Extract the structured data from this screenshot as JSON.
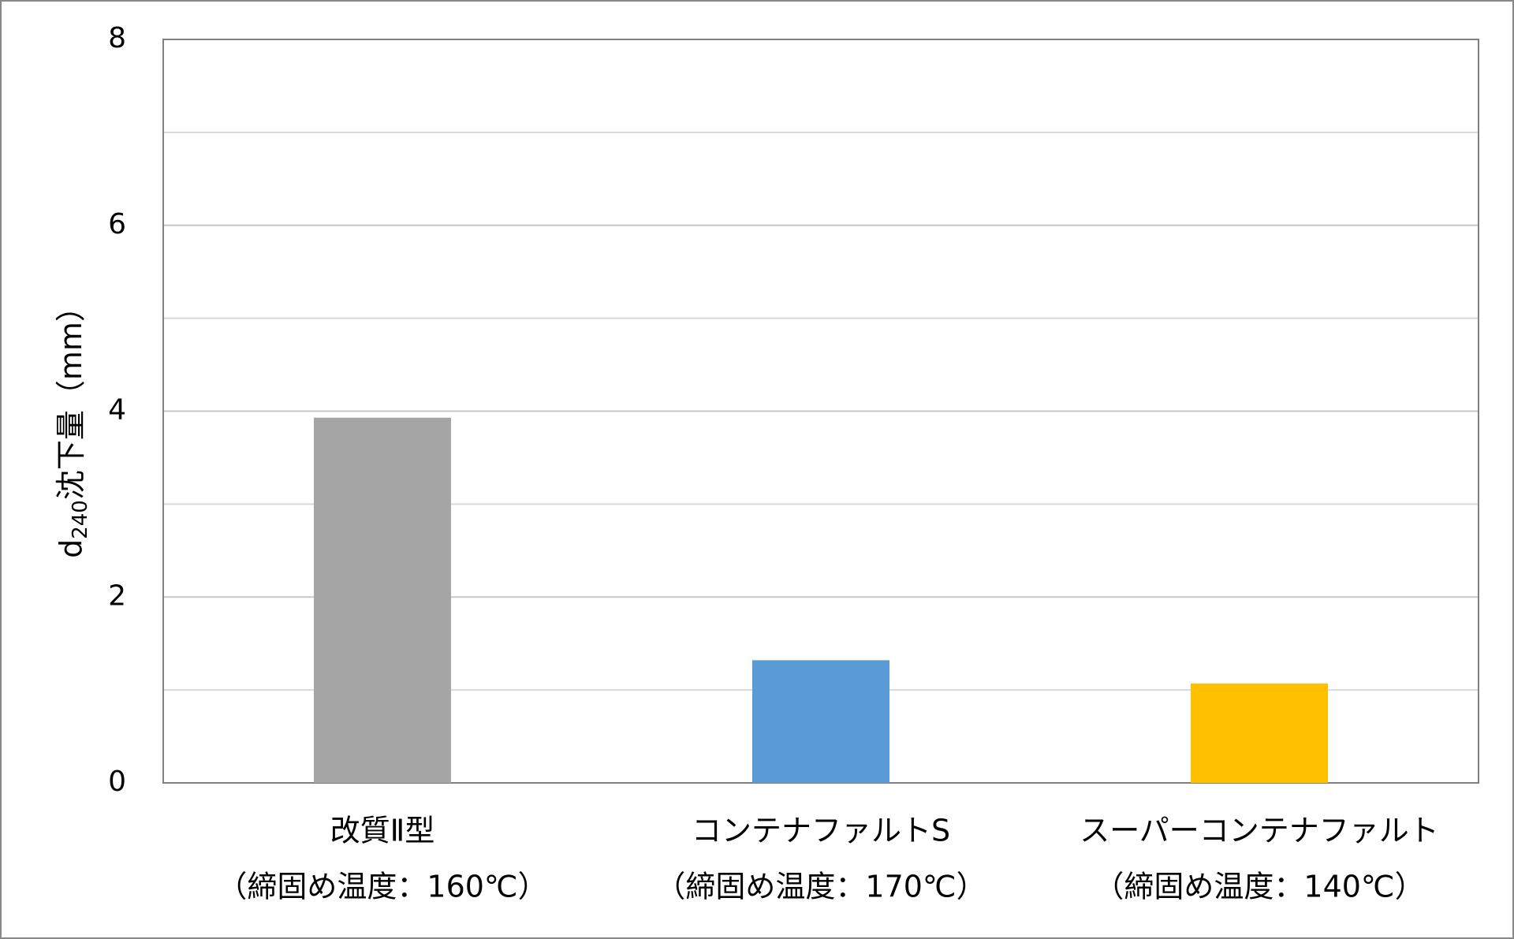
{
  "chart_data": {
    "type": "bar",
    "y_label": {
      "main": "d",
      "subscript": "240",
      "rest": "沈下量（mm）"
    },
    "categories": [
      [
        "改質Ⅱ型",
        "（締固め温度：160℃）"
      ],
      [
        "コンテナファルトS",
        "（締固め温度：170℃）"
      ],
      [
        "スーパーコンテナファルト",
        "（締固め温度：140℃）"
      ]
    ],
    "values": [
      3.93,
      1.32,
      1.07
    ],
    "colors": [
      "#a5a5a5",
      "#5b9bd5",
      "#ffc000"
    ],
    "ylim": [
      0,
      8
    ],
    "yticks": [
      0,
      2,
      4,
      6,
      8
    ],
    "grid": true,
    "minor_grid": true
  }
}
